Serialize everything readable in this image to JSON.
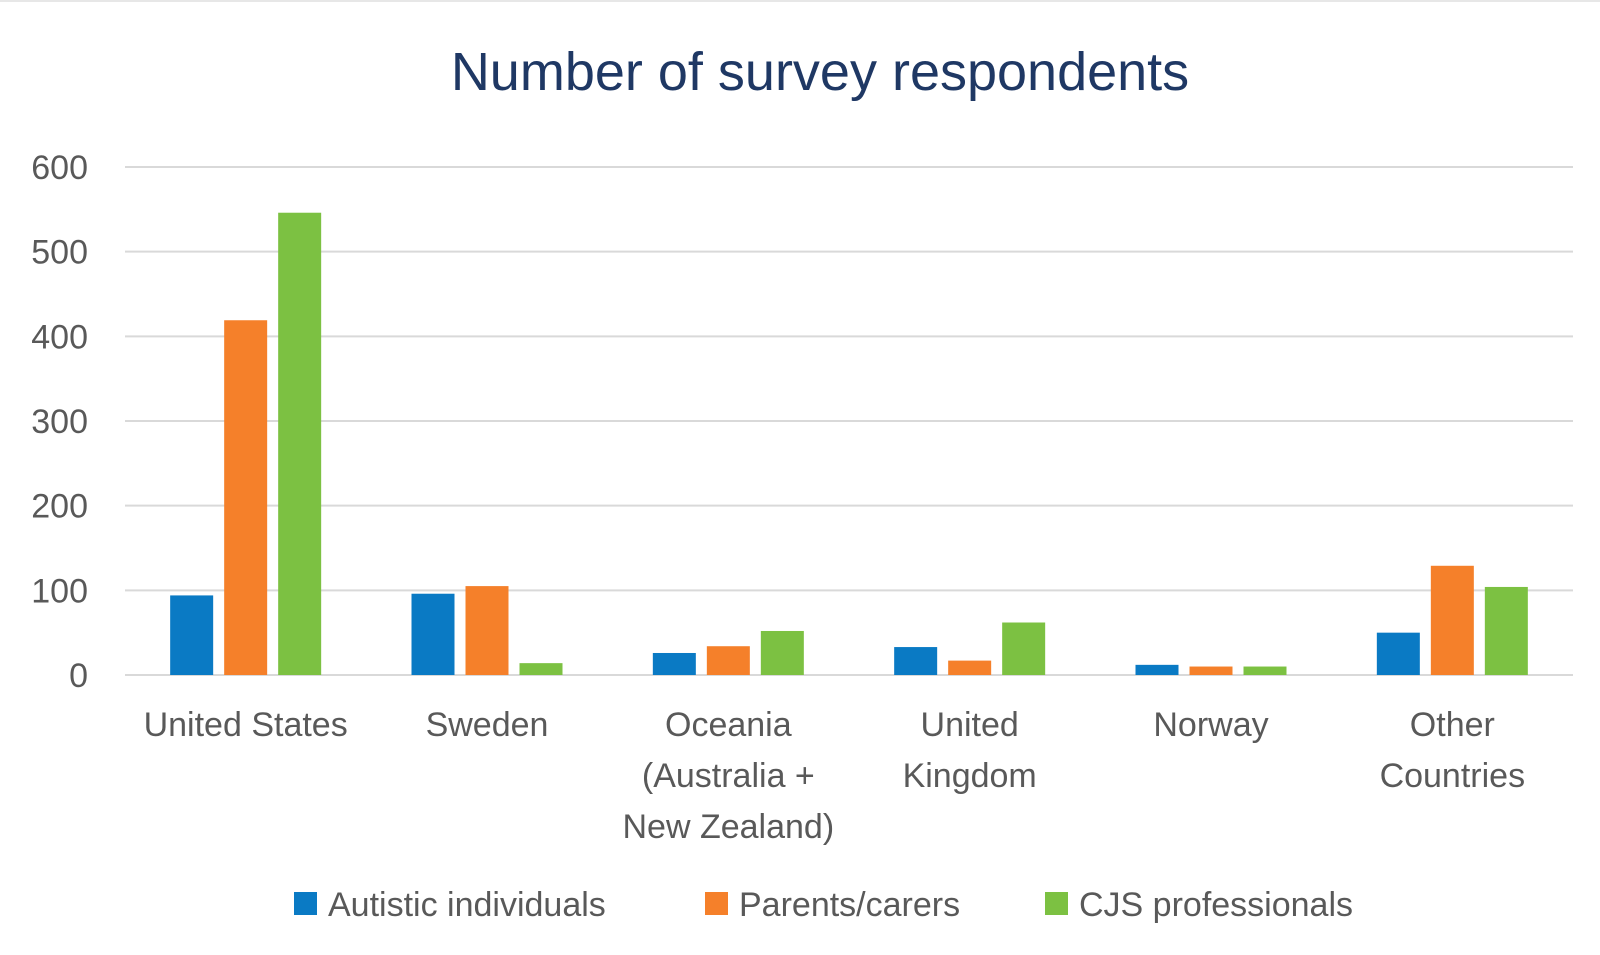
{
  "chart_data": {
    "type": "bar",
    "title": "Number of survey respondents",
    "categories": [
      [
        "United States"
      ],
      [
        "Sweden"
      ],
      [
        "Oceania",
        "(Australia +",
        "New Zealand)"
      ],
      [
        "United",
        "Kingdom"
      ],
      [
        "Norway"
      ],
      [
        "Other",
        "Countries"
      ]
    ],
    "series": [
      {
        "name": "Autistic individuals",
        "color": "#0a7ac4",
        "values": [
          94,
          96,
          26,
          33,
          12,
          50
        ]
      },
      {
        "name": "Parents/carers",
        "color": "#f5802a",
        "values": [
          419,
          105,
          34,
          17,
          10,
          129
        ]
      },
      {
        "name": "CJS professionals",
        "color": "#7cc142",
        "values": [
          546,
          14,
          52,
          62,
          10,
          104
        ]
      }
    ],
    "ylim": [
      0,
      600
    ],
    "yticks": [
      0,
      100,
      200,
      300,
      400,
      500,
      600
    ],
    "grid": true,
    "legend": "bottom",
    "colors": {
      "title": "#1f3864",
      "axis_text": "#595959",
      "grid": "#d9d9d9"
    }
  }
}
